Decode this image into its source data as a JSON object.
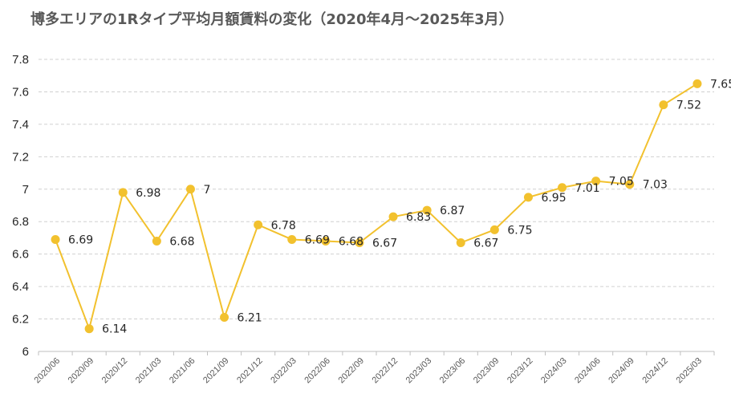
{
  "chart_data": {
    "type": "line",
    "title": "博多エリアの1Rタイプ平均月額賃料の変化（2020年4月～2025年3月）",
    "categories": [
      "2020/06",
      "2020/09",
      "2020/12",
      "2021/03",
      "2021/06",
      "2021/09",
      "2021/12",
      "2022/03",
      "2022/06",
      "2022/09",
      "2022/12",
      "2023/03",
      "2023/06",
      "2023/09",
      "2023/12",
      "2024/03",
      "2024/06",
      "2024/09",
      "2024/12",
      "2025/03"
    ],
    "series": [
      {
        "values": [
          6.69,
          6.14,
          6.98,
          6.68,
          7,
          6.21,
          6.78,
          6.69,
          6.68,
          6.67,
          6.83,
          6.87,
          6.67,
          6.75,
          6.95,
          7.01,
          7.05,
          7.03,
          7.52,
          7.65
        ],
        "labels": [
          "6.69",
          "6.14",
          "6.98",
          "6.68",
          "7",
          "6.21",
          "6.78",
          "6.69",
          "6.68",
          "6.67",
          "6.83",
          "6.87",
          "6.67",
          "6.75",
          "6.95",
          "7.01",
          "7.05",
          "7.03",
          "7.52",
          "7.65"
        ]
      }
    ],
    "ylim": [
      6,
      7.8
    ],
    "yticks": [
      "6",
      "6.2",
      "6.4",
      "6.6",
      "6.8",
      "7",
      "7.2",
      "7.4",
      "7.6",
      "7.8"
    ],
    "grid": true,
    "line_color": "#F2C12E",
    "grid_color": "#D0D0D0"
  }
}
